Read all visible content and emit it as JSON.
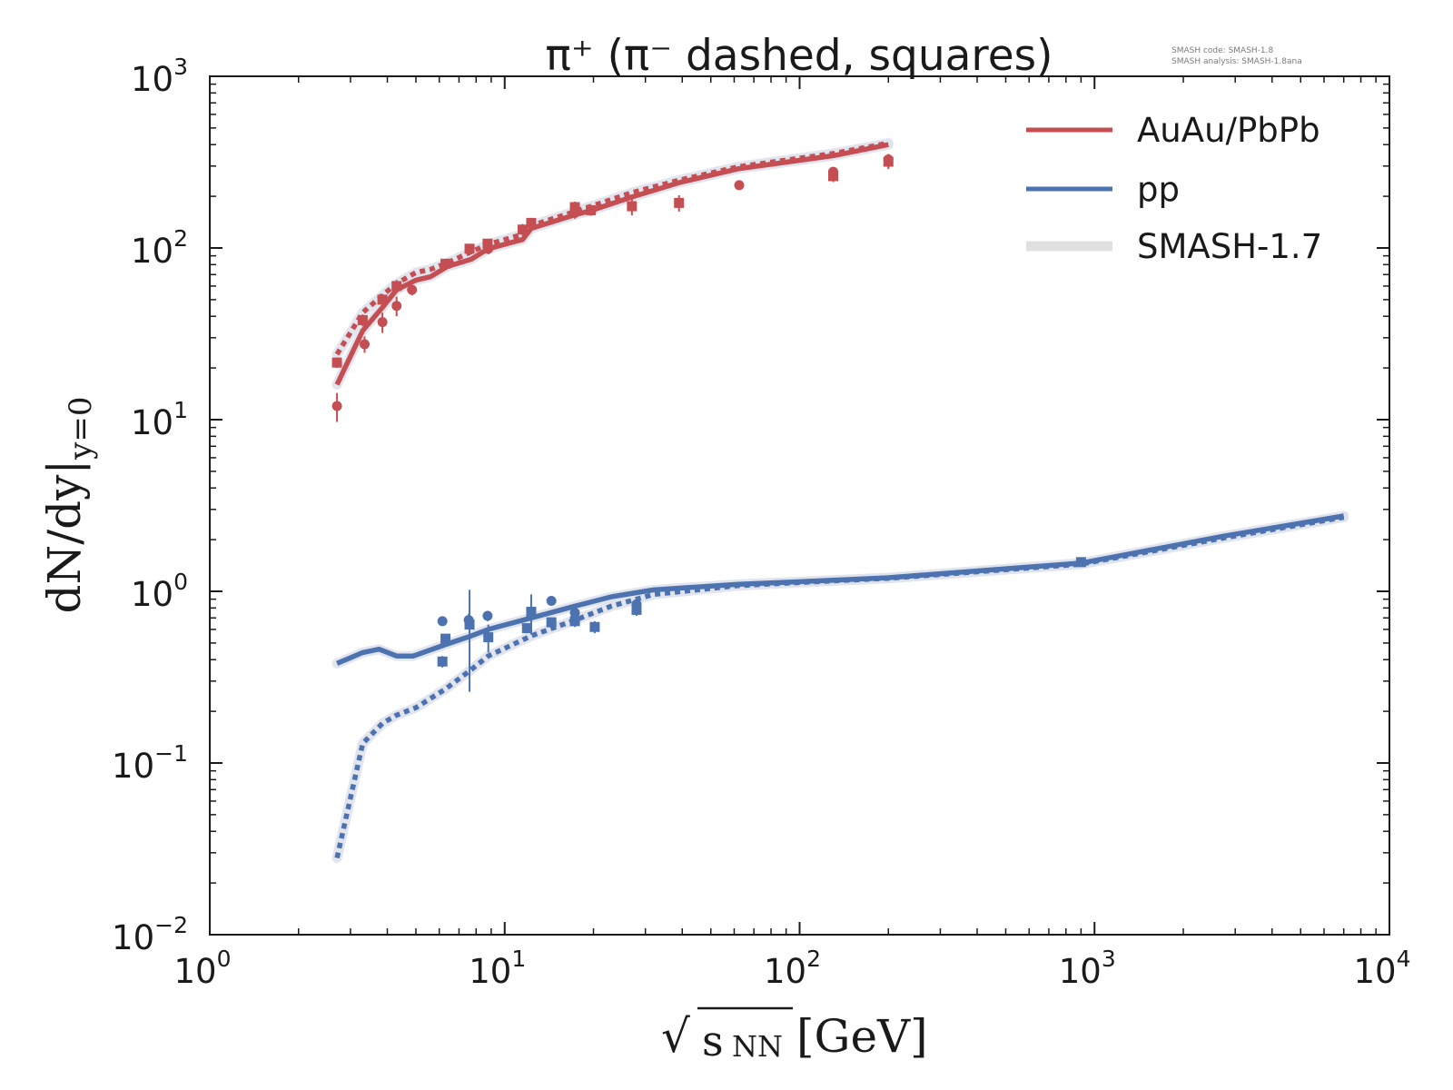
{
  "chart_data": {
    "type": "line",
    "title": "π⁺ (π⁻ dashed, squares)",
    "info_lines": [
      "SMASH code:      SMASH-1.8",
      "SMASH analysis: SMASH-1.8ana"
    ],
    "xlabel": "√sNN[GeV]",
    "xlabel_parts": {
      "radical": "√",
      "variable": "s",
      "subscript": "NN",
      "unit": "[GeV]"
    },
    "ylabel": "dN/dy|y=0",
    "ylabel_parts": {
      "main": "dN/dy|",
      "subscript": "y=0"
    },
    "xscale": "log",
    "yscale": "log",
    "xlim": [
      1,
      10000
    ],
    "ylim": [
      0.01,
      1000
    ],
    "x_ticks": [
      {
        "value": 1,
        "base": "10",
        "exp": "0"
      },
      {
        "value": 10,
        "base": "10",
        "exp": "1"
      },
      {
        "value": 100,
        "base": "10",
        "exp": "2"
      },
      {
        "value": 1000,
        "base": "10",
        "exp": "3"
      },
      {
        "value": 10000,
        "base": "10",
        "exp": "4"
      }
    ],
    "y_ticks": [
      {
        "value": 0.01,
        "base": "10",
        "exp": "−2"
      },
      {
        "value": 0.1,
        "base": "10",
        "exp": "−1"
      },
      {
        "value": 1,
        "base": "10",
        "exp": "0"
      },
      {
        "value": 10,
        "base": "10",
        "exp": "1"
      },
      {
        "value": 100,
        "base": "10",
        "exp": "2"
      },
      {
        "value": 1000,
        "base": "10",
        "exp": "3"
      }
    ],
    "legend": {
      "position": "top-right",
      "entries": [
        {
          "label": "AuAu/PbPb",
          "color": "#c44e52",
          "style": "solid"
        },
        {
          "label": "pp",
          "color": "#4c72b0",
          "style": "solid"
        },
        {
          "label": "SMASH-1.7",
          "color": "#e0e0e0",
          "style": "band"
        }
      ]
    },
    "series": [
      {
        "name": "AuAu/PbPb",
        "color": "#c44e52",
        "style": "solid",
        "x": [
          2.7,
          3.3,
          3.85,
          4.3,
          5.0,
          5.6,
          6.4,
          7.7,
          8.8,
          11.5,
          12.3,
          17.3,
          19.6,
          27,
          39,
          62.4,
          130,
          200
        ],
        "y": [
          16,
          33,
          45,
          57,
          65,
          68,
          78,
          86,
          99,
          112,
          130,
          156,
          165,
          198,
          240,
          290,
          345,
          400
        ]
      },
      {
        "name": "AuAu/PbPb π⁻",
        "color": "#c44e52",
        "style": "dashed",
        "x": [
          2.7,
          3.3,
          3.85,
          4.3,
          5.0,
          5.6,
          6.4,
          7.7,
          8.8,
          11.5,
          12.3,
          17.3,
          19.6,
          27,
          39,
          62.4,
          130,
          200
        ],
        "y": [
          24,
          42,
          53,
          62,
          72,
          75,
          82,
          95,
          105,
          120,
          135,
          163,
          175,
          210,
          248,
          298,
          355,
          408
        ]
      },
      {
        "name": "pp",
        "color": "#4c72b0",
        "style": "solid",
        "x": [
          2.7,
          3.3,
          3.75,
          4.3,
          4.9,
          6.3,
          7.7,
          8.8,
          12.3,
          17.3,
          23,
          32,
          62,
          130,
          200,
          900,
          2760,
          7000
        ],
        "y": [
          0.38,
          0.44,
          0.46,
          0.42,
          0.42,
          0.49,
          0.55,
          0.6,
          0.7,
          0.82,
          0.93,
          1.02,
          1.1,
          1.16,
          1.2,
          1.46,
          2.1,
          2.75
        ]
      },
      {
        "name": "pp π⁻",
        "color": "#4c72b0",
        "style": "dashed",
        "x": [
          2.7,
          3.3,
          3.85,
          4.3,
          5.0,
          6.3,
          7.7,
          8.8,
          12.3,
          17.3,
          23,
          32,
          62,
          130,
          200,
          900,
          2760,
          7000
        ],
        "y": [
          0.028,
          0.13,
          0.17,
          0.19,
          0.21,
          0.27,
          0.35,
          0.42,
          0.55,
          0.68,
          0.82,
          0.96,
          1.08,
          1.15,
          1.19,
          1.44,
          2.05,
          2.7
        ]
      }
    ],
    "reference_bands": [
      {
        "name": "SMASH-1.7",
        "color": "#e0e0e0",
        "follows": [
          "AuAu/PbPb",
          "AuAu/PbPb π⁻",
          "pp",
          "pp π⁻"
        ]
      }
    ],
    "data_points": [
      {
        "group": "AuAu/PbPb",
        "marker": "circle",
        "color": "#c44e52",
        "points": [
          {
            "x": 2.7,
            "y": 12,
            "err": 2.3
          },
          {
            "x": 3.35,
            "y": 27.5,
            "err": 3
          },
          {
            "x": 3.85,
            "y": 37,
            "err": 5
          },
          {
            "x": 4.3,
            "y": 46,
            "err": 6
          },
          {
            "x": 4.85,
            "y": 57,
            "err": 4
          },
          {
            "x": 8.8,
            "y": 99,
            "err": 7
          },
          {
            "x": 17.3,
            "y": 160,
            "err": 12
          },
          {
            "x": 62.4,
            "y": 232,
            "err": 8
          },
          {
            "x": 130,
            "y": 278,
            "err": 15
          },
          {
            "x": 200,
            "y": 328,
            "err": 25
          }
        ]
      },
      {
        "group": "AuAu/PbPb",
        "marker": "square",
        "color": "#c44e52",
        "points": [
          {
            "x": 2.7,
            "y": 21.5,
            "err": 1.5
          },
          {
            "x": 3.3,
            "y": 38,
            "err": 3
          },
          {
            "x": 3.85,
            "y": 50,
            "err": 4
          },
          {
            "x": 4.3,
            "y": 60,
            "err": 5
          },
          {
            "x": 6.3,
            "y": 81,
            "err": 5
          },
          {
            "x": 7.6,
            "y": 99,
            "err": 6
          },
          {
            "x": 8.75,
            "y": 106,
            "err": 6
          },
          {
            "x": 11.5,
            "y": 128,
            "err": 10
          },
          {
            "x": 12.3,
            "y": 140,
            "err": 8
          },
          {
            "x": 17.3,
            "y": 173,
            "err": 13
          },
          {
            "x": 19.6,
            "y": 166,
            "err": 12
          },
          {
            "x": 27,
            "y": 175,
            "err": 20
          },
          {
            "x": 39,
            "y": 183,
            "err": 20
          },
          {
            "x": 130,
            "y": 262,
            "err": 20
          },
          {
            "x": 200,
            "y": 318,
            "err": 30
          }
        ]
      },
      {
        "group": "pp",
        "marker": "circle",
        "color": "#4c72b0",
        "points": [
          {
            "x": 6.15,
            "y": 0.67,
            "err": 0.03
          },
          {
            "x": 7.55,
            "y": 0.68,
            "err": 0.06
          },
          {
            "x": 8.75,
            "y": 0.72,
            "err": 0.05
          },
          {
            "x": 14.4,
            "y": 0.88,
            "err": 0.04
          },
          {
            "x": 17.3,
            "y": 0.75,
            "err": 0.07
          },
          {
            "x": 28,
            "y": 0.84,
            "err": 0.05
          }
        ]
      },
      {
        "group": "pp",
        "marker": "square",
        "color": "#4c72b0",
        "points": [
          {
            "x": 6.15,
            "y": 0.39,
            "err": 0.03
          },
          {
            "x": 6.3,
            "y": 0.53,
            "err": 0.03
          },
          {
            "x": 7.6,
            "y": 0.64,
            "err": 0.38
          },
          {
            "x": 8.8,
            "y": 0.54,
            "err": 0.1
          },
          {
            "x": 11.9,
            "y": 0.61,
            "err": 0.03
          },
          {
            "x": 12.3,
            "y": 0.76,
            "err": 0.2
          },
          {
            "x": 14.4,
            "y": 0.66,
            "err": 0.03
          },
          {
            "x": 17.3,
            "y": 0.67,
            "err": 0.05
          },
          {
            "x": 20.2,
            "y": 0.62,
            "err": 0.05
          },
          {
            "x": 28,
            "y": 0.78,
            "err": 0.06
          },
          {
            "x": 900,
            "y": 1.48,
            "err": 0.06
          }
        ]
      }
    ]
  }
}
